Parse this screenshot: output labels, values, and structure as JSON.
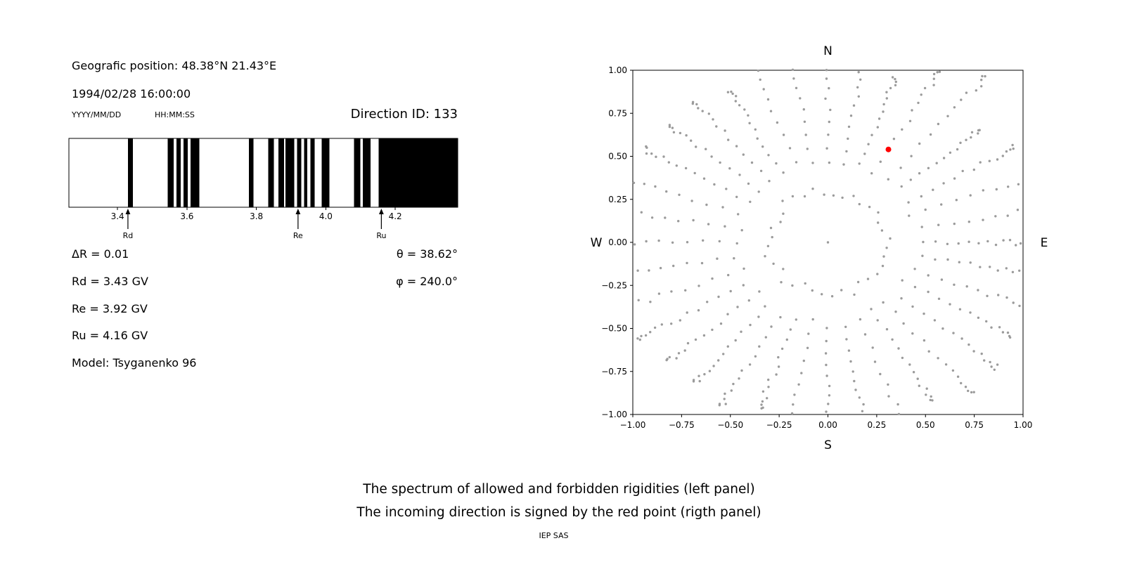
{
  "left_panel": {
    "geographic_position": "Geografic position: 48.38°N 21.43°E",
    "datetime": "1994/02/28 16:00:00",
    "date_format_label": "YYYY/MM/DD",
    "time_format_label": "HH:MM:SS",
    "direction_id": "Direction ID: 133",
    "delta_r": "ΔR = 0.01",
    "rd": "Rd = 3.43 GV",
    "re": "Re = 3.92 GV",
    "ru": "Ru = 4.16 GV",
    "theta": "θ = 38.62°",
    "phi": "φ = 240.0°",
    "model": "Model: Tsyganenko 96"
  },
  "caption": {
    "line1": "The spectrum of allowed and forbidden rigidities (left panel)",
    "line2": "The incoming direction is signed by the red point (rigth panel)",
    "credit": "IEP SAS"
  },
  "chart_data": [
    {
      "id": "rigidity-spectrum",
      "type": "bar",
      "panel": "left",
      "description": "Spectrum of allowed (black) and forbidden (white) rigidities",
      "x_unit": "GV",
      "x_range": [
        3.26,
        4.38
      ],
      "x_ticks": [
        3.4,
        3.6,
        3.8,
        4.0,
        4.2
      ],
      "allowed_bands_gv": [
        [
          3.43,
          3.444
        ],
        [
          3.545,
          3.562
        ],
        [
          3.57,
          3.582
        ],
        [
          3.59,
          3.602
        ],
        [
          3.61,
          3.636
        ],
        [
          3.778,
          3.792
        ],
        [
          3.834,
          3.85
        ],
        [
          3.864,
          3.88
        ],
        [
          3.884,
          3.909
        ],
        [
          3.917,
          3.929
        ],
        [
          3.937,
          3.947
        ],
        [
          3.956,
          3.968
        ],
        [
          3.988,
          4.01
        ],
        [
          4.081,
          4.099
        ],
        [
          4.107,
          4.129
        ],
        [
          4.152,
          4.38
        ]
      ],
      "cutoff_markers": [
        {
          "label": "Rd",
          "value_gv": 3.43
        },
        {
          "label": "Re",
          "value_gv": 3.92
        },
        {
          "label": "Ru",
          "value_gv": 4.16
        }
      ],
      "band_color": "#000000"
    },
    {
      "id": "incoming-direction",
      "type": "scatter",
      "panel": "right",
      "compass": {
        "top": "N",
        "bottom": "S",
        "left": "W",
        "right": "E"
      },
      "xlim": [
        -1.0,
        1.0
      ],
      "ylim": [
        -1.0,
        1.0
      ],
      "x_ticks": [
        -1.0,
        -0.75,
        -0.5,
        -0.25,
        0.0,
        0.25,
        0.5,
        0.75,
        1.0
      ],
      "y_ticks": [
        -1.0,
        -0.75,
        -0.5,
        -0.25,
        0.0,
        0.25,
        0.5,
        0.75,
        1.0
      ],
      "tick_decimals": 2,
      "grid_dots": {
        "color": "#9b9b9b",
        "spoke_count": 36,
        "spoke_angle_step_deg": 10,
        "spoke_inner_radius": 0.44,
        "spoke_outer_radius_min": 1.0,
        "spoke_outer_radius_max": 1.26,
        "dots_per_spoke": 15,
        "inner_ring_radius": 0.3,
        "inner_ring_dots": 36,
        "center_dot": true
      },
      "red_point": {
        "x": 0.31,
        "y": 0.54,
        "color": "#ff0000"
      }
    }
  ]
}
